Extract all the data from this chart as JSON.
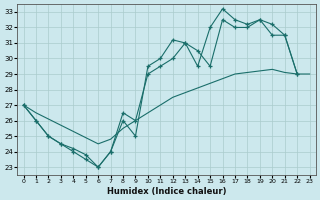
{
  "xlabel": "Humidex (Indice chaleur)",
  "bg_color": "#cce8ed",
  "grid_color": "#aacccc",
  "line_color": "#1a6e6a",
  "xlim": [
    -0.5,
    23.5
  ],
  "ylim": [
    22.5,
    33.5
  ],
  "xticks": [
    0,
    1,
    2,
    3,
    4,
    5,
    6,
    7,
    8,
    9,
    10,
    11,
    12,
    13,
    14,
    15,
    16,
    17,
    18,
    19,
    20,
    21,
    22,
    23
  ],
  "yticks": [
    23,
    24,
    25,
    26,
    27,
    28,
    29,
    30,
    31,
    32,
    33
  ],
  "line_straight": {
    "x": [
      0,
      1,
      2,
      3,
      4,
      5,
      6,
      7,
      8,
      9,
      10,
      11,
      12,
      13,
      14,
      15,
      16,
      17,
      18,
      19,
      20,
      21,
      22,
      23
    ],
    "y": [
      27.0,
      26.5,
      26.1,
      25.7,
      25.3,
      24.9,
      24.5,
      24.8,
      25.5,
      26.0,
      26.5,
      27.0,
      27.5,
      27.8,
      28.1,
      28.4,
      28.7,
      29.0,
      29.1,
      29.2,
      29.3,
      29.1,
      29.0,
      29.0
    ]
  },
  "line_mid": {
    "x": [
      0,
      1,
      2,
      3,
      4,
      5,
      6,
      7,
      8,
      9,
      10,
      11,
      12,
      13,
      14,
      15,
      16,
      17,
      18,
      19,
      20,
      21,
      22
    ],
    "y": [
      27.0,
      26.0,
      25.0,
      24.5,
      24.2,
      23.8,
      23.0,
      24.0,
      26.5,
      26.0,
      29.0,
      29.5,
      30.0,
      31.0,
      30.5,
      29.5,
      32.5,
      32.0,
      32.0,
      32.5,
      31.5,
      31.5,
      29.0
    ]
  },
  "line_top": {
    "x": [
      0,
      1,
      2,
      3,
      4,
      5,
      6,
      7,
      8,
      9,
      10,
      11,
      12,
      13,
      14,
      15,
      16,
      17,
      18,
      19,
      20,
      21,
      22
    ],
    "y": [
      27.0,
      26.0,
      25.0,
      24.5,
      24.0,
      23.5,
      23.0,
      24.0,
      26.0,
      25.0,
      29.5,
      30.0,
      31.2,
      31.0,
      29.5,
      32.0,
      33.2,
      32.5,
      32.2,
      32.5,
      32.2,
      31.5,
      29.0
    ]
  }
}
